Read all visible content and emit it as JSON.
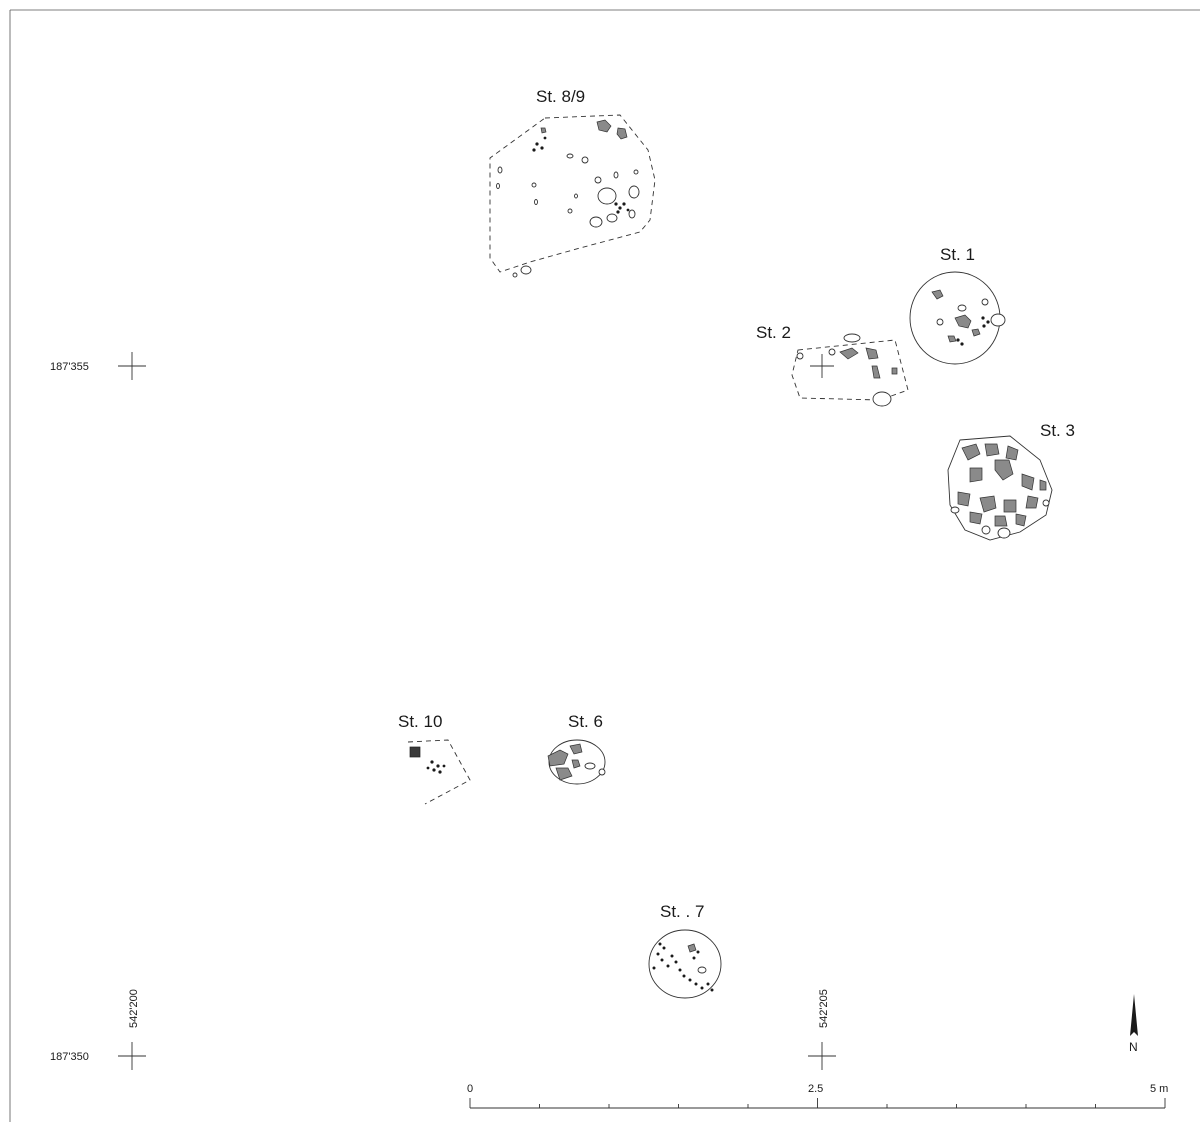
{
  "features": {
    "st89": "St. 8/9",
    "st1": "St. 1",
    "st2": "St. 2",
    "st3": "St. 3",
    "st10": "St. 10",
    "st6": "St. 6",
    "st7": "St. . 7"
  },
  "grid": {
    "north_top": "187'355",
    "north_bottom": "187'350",
    "east_left": "542'200",
    "east_right": "542'205"
  },
  "scale_bar": {
    "start": "0",
    "mid": "2.5",
    "end": "5 m"
  },
  "north_arrow": {
    "label": "N",
    "icon": "north-arrow-icon"
  },
  "colors": {
    "stone_fill": "#8a8a8a",
    "ink": "#1a1a1a"
  }
}
